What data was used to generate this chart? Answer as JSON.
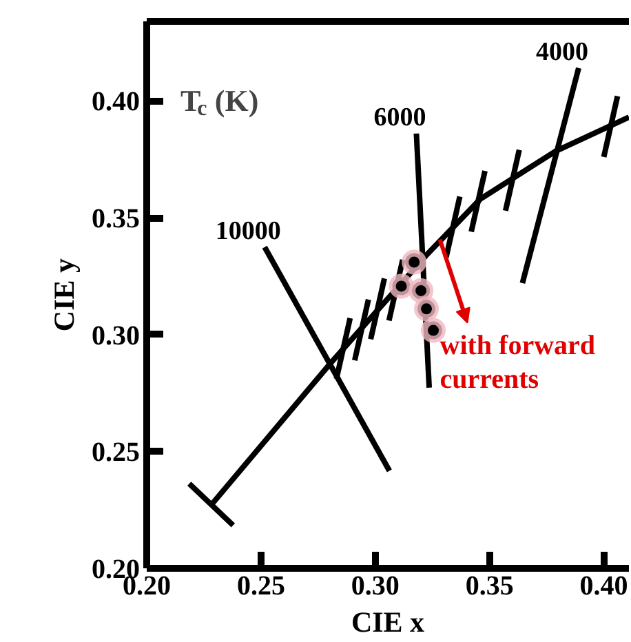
{
  "chart_data": {
    "type": "line",
    "xlabel": "CIE x",
    "ylabel": "CIE y",
    "legend_title": "T$_{c}$ (K)",
    "xlim": [
      0.2,
      0.411
    ],
    "ylim": [
      0.2,
      0.434
    ],
    "xticks": [
      {
        "value": 0.2,
        "label": "0.20"
      },
      {
        "value": 0.25,
        "label": "0.25"
      },
      {
        "value": 0.3,
        "label": "0.30"
      },
      {
        "value": 0.35,
        "label": "0.35"
      },
      {
        "value": 0.4,
        "label": "0.40"
      }
    ],
    "yticks": [
      {
        "value": 0.2,
        "label": "0.20"
      },
      {
        "value": 0.25,
        "label": "0.25"
      },
      {
        "value": 0.3,
        "label": "0.30"
      },
      {
        "value": 0.35,
        "label": "0.35"
      },
      {
        "value": 0.4,
        "label": "0.40"
      }
    ],
    "grid": false,
    "line_style": "solid",
    "series": [
      {
        "color": "#000000",
        "x": [
          0.229,
          0.2804,
          0.3224,
          0.346,
          0.379,
          0.411
        ],
        "values": [
          0.228,
          0.2877,
          0.334,
          0.358,
          0.3785,
          0.393
        ]
      },
      {
        "color": "#000000",
        "x": [
          0.2186,
          0.2378
        ],
        "values": [
          0.2362,
          0.2184
        ]
      },
      {
        "color": "#000000",
        "x": [
          0.283,
          0.289
        ],
        "values": [
          0.281,
          0.307
        ]
      },
      {
        "color": "#000000",
        "x": [
          0.291,
          0.297
        ],
        "values": [
          0.289,
          0.315
        ]
      },
      {
        "color": "#000000",
        "x": [
          0.298,
          0.304
        ],
        "values": [
          0.298,
          0.324
        ]
      },
      {
        "color": "#000000",
        "x": [
          0.306,
          0.312
        ],
        "values": [
          0.306,
          0.332
        ]
      },
      {
        "color": "#000000",
        "x": [
          0.331,
          0.337
        ],
        "values": [
          0.333,
          0.359
        ]
      },
      {
        "color": "#000000",
        "x": [
          0.342,
          0.348
        ],
        "values": [
          0.344,
          0.37
        ]
      },
      {
        "color": "#000000",
        "x": [
          0.357,
          0.363
        ],
        "values": [
          0.353,
          0.379
        ]
      },
      {
        "color": "#000000",
        "x": [
          0.4,
          0.406
        ],
        "values": [
          0.376,
          0.402
        ]
      },
      {
        "name": "10000",
        "color": "#000000",
        "x": [
          0.2516,
          0.3062
        ],
        "values": [
          0.3374,
          0.2417
        ]
      },
      {
        "name": "6000",
        "color": "#000000",
        "x": [
          0.318,
          0.3236
        ],
        "values": [
          0.386,
          0.2773
        ]
      },
      {
        "name": "4000",
        "color": "#000000",
        "x": [
          0.389,
          0.3644
        ],
        "values": [
          0.414,
          0.322
        ]
      },
      {
        "type": "scatter",
        "marker": "circle",
        "color": "#000000",
        "x": [
          0.317,
          0.3114,
          0.32,
          0.3224,
          0.3254
        ],
        "values": [
          0.331,
          0.3207,
          0.3188,
          0.311,
          0.3018
        ]
      }
    ],
    "annotations": [
      "with forward currents"
    ]
  }
}
